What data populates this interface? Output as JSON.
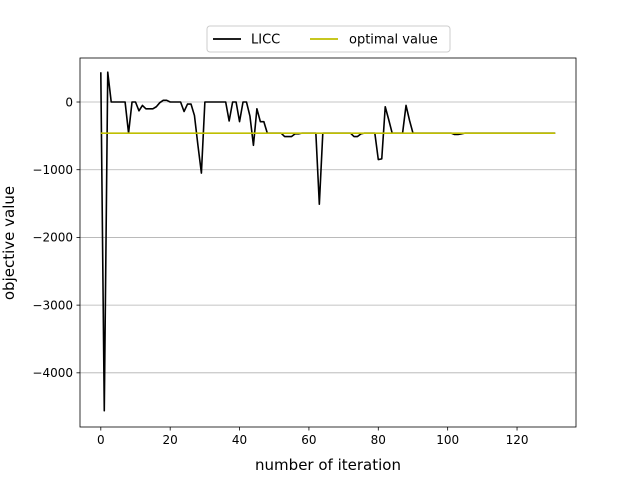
{
  "chart_data": {
    "type": "line",
    "title": "",
    "xlabel": "number of iteration",
    "ylabel": "objective value",
    "xlim": [
      -6,
      137
    ],
    "ylim": [
      -4800,
      650
    ],
    "xticks": [
      0,
      20,
      40,
      60,
      80,
      100,
      120
    ],
    "yticks": [
      0,
      -1000,
      -2000,
      -3000,
      -4000
    ],
    "xtick_labels": [
      "0",
      "20",
      "40",
      "60",
      "80",
      "100",
      "120"
    ],
    "ytick_labels": [
      "0",
      "−1000",
      "−2000",
      "−3000",
      "−4000"
    ],
    "grid": "horizontal",
    "legend": {
      "placement": "top-center-outside",
      "entries": [
        "LICC",
        "optimal value"
      ]
    },
    "series": [
      {
        "name": "LICC",
        "color": "#000000",
        "points": [
          [
            0,
            440
          ],
          [
            1,
            -4560
          ],
          [
            2,
            440
          ],
          [
            3,
            0
          ],
          [
            4,
            0
          ],
          [
            5,
            0
          ],
          [
            6,
            0
          ],
          [
            7,
            0
          ],
          [
            8,
            -460
          ],
          [
            9,
            0
          ],
          [
            10,
            0
          ],
          [
            11,
            -130
          ],
          [
            12,
            -50
          ],
          [
            13,
            -100
          ],
          [
            14,
            -100
          ],
          [
            15,
            -100
          ],
          [
            16,
            -70
          ],
          [
            17,
            -10
          ],
          [
            18,
            25
          ],
          [
            19,
            25
          ],
          [
            20,
            0
          ],
          [
            21,
            0
          ],
          [
            22,
            0
          ],
          [
            23,
            0
          ],
          [
            24,
            -140
          ],
          [
            25,
            -30
          ],
          [
            26,
            -30
          ],
          [
            27,
            -200
          ],
          [
            28,
            -640
          ],
          [
            29,
            -1050
          ],
          [
            30,
            0
          ],
          [
            31,
            0
          ],
          [
            32,
            0
          ],
          [
            33,
            0
          ],
          [
            34,
            0
          ],
          [
            35,
            0
          ],
          [
            36,
            0
          ],
          [
            37,
            -280
          ],
          [
            38,
            0
          ],
          [
            39,
            0
          ],
          [
            40,
            -290
          ],
          [
            41,
            0
          ],
          [
            42,
            0
          ],
          [
            43,
            -210
          ],
          [
            44,
            -640
          ],
          [
            45,
            -100
          ],
          [
            46,
            -290
          ],
          [
            47,
            -290
          ],
          [
            48,
            -460
          ],
          [
            49,
            -460
          ],
          [
            50,
            -460
          ],
          [
            51,
            -460
          ],
          [
            52,
            -460
          ],
          [
            53,
            -510
          ],
          [
            54,
            -510
          ],
          [
            55,
            -510
          ],
          [
            56,
            -470
          ],
          [
            57,
            -470
          ],
          [
            58,
            -460
          ],
          [
            59,
            -460
          ],
          [
            60,
            -460
          ],
          [
            61,
            -460
          ],
          [
            62,
            -460
          ],
          [
            63,
            -1510
          ],
          [
            64,
            -460
          ],
          [
            65,
            -460
          ],
          [
            66,
            -460
          ],
          [
            67,
            -460
          ],
          [
            68,
            -460
          ],
          [
            69,
            -460
          ],
          [
            70,
            -460
          ],
          [
            71,
            -460
          ],
          [
            72,
            -460
          ],
          [
            73,
            -510
          ],
          [
            74,
            -510
          ],
          [
            75,
            -470
          ],
          [
            76,
            -460
          ],
          [
            77,
            -460
          ],
          [
            78,
            -460
          ],
          [
            79,
            -460
          ],
          [
            80,
            -850
          ],
          [
            81,
            -840
          ],
          [
            82,
            -70
          ],
          [
            83,
            -260
          ],
          [
            84,
            -460
          ],
          [
            85,
            -460
          ],
          [
            86,
            -460
          ],
          [
            87,
            -460
          ],
          [
            88,
            -50
          ],
          [
            89,
            -270
          ],
          [
            90,
            -460
          ],
          [
            91,
            -460
          ],
          [
            92,
            -460
          ],
          [
            93,
            -460
          ],
          [
            94,
            -460
          ],
          [
            95,
            -460
          ],
          [
            96,
            -460
          ],
          [
            97,
            -460
          ],
          [
            98,
            -460
          ],
          [
            99,
            -460
          ],
          [
            100,
            -460
          ],
          [
            101,
            -460
          ],
          [
            102,
            -480
          ],
          [
            103,
            -480
          ],
          [
            104,
            -470
          ],
          [
            105,
            -460
          ],
          [
            106,
            -460
          ],
          [
            107,
            -460
          ],
          [
            108,
            -460
          ],
          [
            109,
            -460
          ],
          [
            110,
            -460
          ],
          [
            115,
            -460
          ],
          [
            120,
            -460
          ],
          [
            125,
            -460
          ],
          [
            131,
            -460
          ]
        ]
      },
      {
        "name": "optimal value",
        "color": "#bfbf00",
        "points": [
          [
            0,
            -460
          ],
          [
            131,
            -460
          ]
        ]
      }
    ]
  }
}
